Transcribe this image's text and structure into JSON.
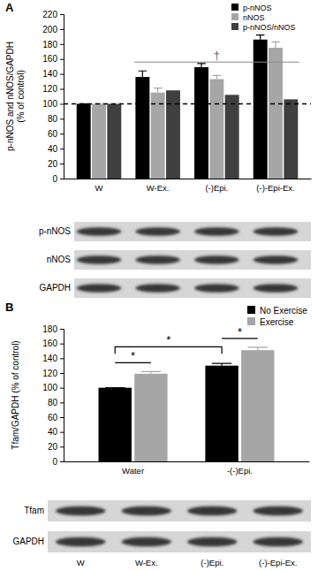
{
  "chart_data": [
    {
      "type": "bar",
      "panel_label": "A",
      "y_label": [
        "p-nNOS and nNOS/GAPDH",
        "(% of control)"
      ],
      "categories": [
        "W",
        "W-Ex.",
        "(-)Epi.",
        "(-)-Epi-Ex."
      ],
      "series": [
        {
          "name": "p-nNOS",
          "color": "#000000",
          "values": [
            100,
            136,
            149,
            186
          ],
          "errors": [
            0,
            8,
            5,
            6
          ]
        },
        {
          "name": "nNOS",
          "color": "#a6a6a6",
          "values": [
            100,
            115,
            133,
            175
          ],
          "errors": [
            0,
            6,
            5,
            8
          ]
        },
        {
          "name": "p-nNOS/nNOS",
          "color": "#3f3f3f",
          "values": [
            100,
            118,
            112,
            106
          ]
        }
      ],
      "ylim": [
        0,
        220
      ],
      "yticks": [
        0,
        20,
        40,
        60,
        80,
        100,
        120,
        140,
        160,
        180,
        200,
        220
      ],
      "grid": false,
      "legend": "top-right",
      "reference_line": 100,
      "annotations": [
        {
          "text": "†",
          "over": [
            1,
            3
          ]
        }
      ],
      "blot": {
        "rows": [
          "p-nNOS",
          "nNOS",
          "GAPDH"
        ]
      }
    },
    {
      "type": "bar",
      "panel_label": "B",
      "y_label": "Tfam/GAPDH (% of control)",
      "categories": [
        "Water",
        "-(-)Epi."
      ],
      "series": [
        {
          "name": "No Exercise",
          "color": "#000000",
          "values": [
            100,
            130
          ],
          "errors": [
            0,
            3
          ]
        },
        {
          "name": "Exercise",
          "color": "#a6a6a6",
          "values": [
            119,
            151
          ],
          "errors": [
            3,
            4
          ]
        }
      ],
      "ylim": [
        0,
        180
      ],
      "yticks": [
        0,
        20,
        40,
        60,
        80,
        100,
        120,
        140,
        160,
        180
      ],
      "grid": false,
      "legend": "top-right",
      "annotations": [
        {
          "text": "*",
          "from": [
            0,
            0
          ],
          "to": [
            0,
            1
          ]
        },
        {
          "text": "*",
          "from": [
            1,
            0
          ],
          "to": [
            1,
            1
          ]
        },
        {
          "text": "*",
          "from": [
            0,
            0
          ],
          "to": [
            1,
            0
          ]
        }
      ],
      "blot": {
        "rows": [
          "Tfam",
          "GAPDH"
        ],
        "lanes": [
          "W",
          "W-Ex.",
          "(-)Epi.",
          "(-)-Epi-Ex."
        ]
      }
    }
  ]
}
